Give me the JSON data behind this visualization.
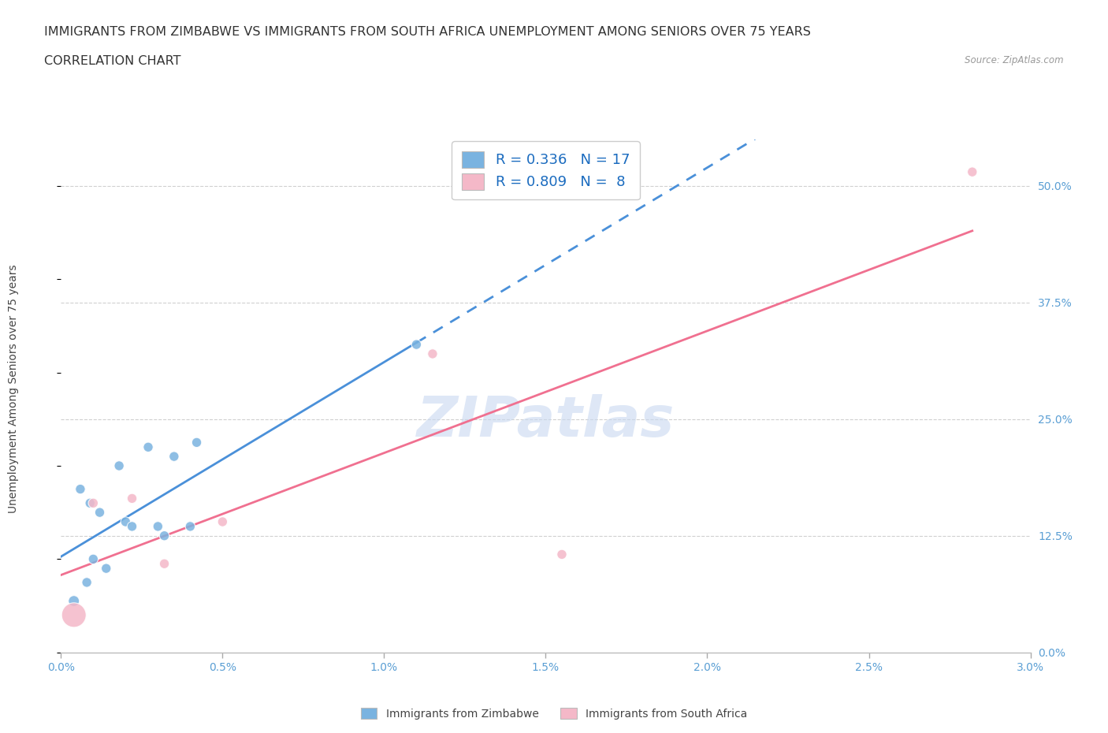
{
  "title_line1": "IMMIGRANTS FROM ZIMBABWE VS IMMIGRANTS FROM SOUTH AFRICA UNEMPLOYMENT AMONG SENIORS OVER 75 YEARS",
  "title_line2": "CORRELATION CHART",
  "source": "Source: ZipAtlas.com",
  "ylabel_label": "Unemployment Among Seniors over 75 years",
  "x_min": 0.0,
  "x_max": 3.0,
  "y_min": 0.0,
  "y_max": 55.0,
  "x_ticks": [
    0.0,
    0.5,
    1.0,
    1.5,
    2.0,
    2.5,
    3.0
  ],
  "y_ticks": [
    0.0,
    12.5,
    25.0,
    37.5,
    50.0
  ],
  "zimbabwe_x": [
    0.04,
    0.06,
    0.08,
    0.09,
    0.1,
    0.12,
    0.14,
    0.18,
    0.2,
    0.22,
    0.27,
    0.3,
    0.32,
    0.35,
    0.4,
    0.42,
    1.1
  ],
  "zimbabwe_y": [
    5.5,
    17.5,
    7.5,
    16.0,
    10.0,
    15.0,
    9.0,
    20.0,
    14.0,
    13.5,
    22.0,
    13.5,
    12.5,
    21.0,
    13.5,
    22.5,
    33.0
  ],
  "zimbabwe_sizes": [
    100,
    80,
    80,
    80,
    80,
    80,
    80,
    80,
    80,
    80,
    80,
    80,
    80,
    80,
    80,
    80,
    80
  ],
  "sa_x": [
    0.04,
    0.1,
    0.22,
    0.32,
    0.5,
    1.15,
    1.55,
    2.82
  ],
  "sa_y": [
    4.0,
    16.0,
    16.5,
    9.5,
    14.0,
    32.0,
    10.5,
    51.5
  ],
  "sa_sizes": [
    500,
    80,
    80,
    80,
    80,
    80,
    80,
    80
  ],
  "zimbabwe_color": "#7ab3e0",
  "sa_color": "#f4b8c8",
  "zimbabwe_line_color": "#4a90d9",
  "sa_line_color": "#f07090",
  "R_zimbabwe": 0.336,
  "N_zimbabwe": 17,
  "R_sa": 0.809,
  "N_sa": 8,
  "legend_r_color": "#1a6bbf",
  "grid_color": "#d0d0d0",
  "background_color": "#ffffff",
  "watermark_text": "ZIPatlas",
  "watermark_color": "#c8d8f0",
  "title_fontsize": 11.5,
  "subtitle_fontsize": 11.5,
  "axis_label_fontsize": 10,
  "tick_fontsize": 10,
  "legend_fontsize": 13
}
